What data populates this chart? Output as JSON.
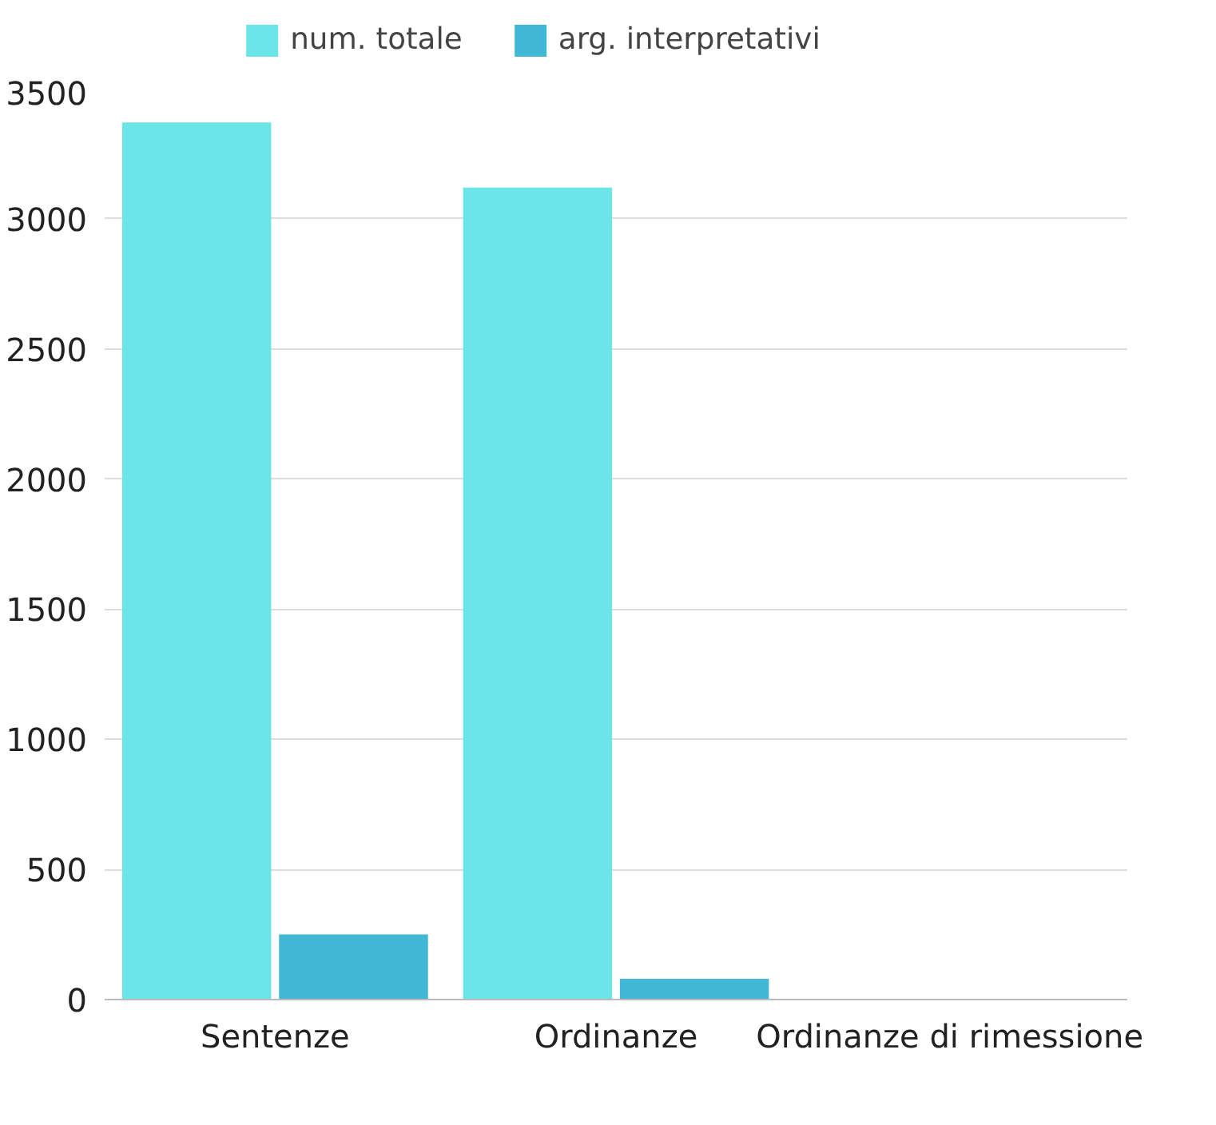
{
  "chart_data": {
    "type": "bar",
    "categories": [
      "Sentenze",
      "Ordinanze",
      "Ordinanze di rimessione"
    ],
    "series": [
      {
        "name": "num. totale",
        "color": "#6ce5e8",
        "values": [
          3370,
          3120,
          null
        ]
      },
      {
        "name": "arg. interpretativi",
        "color": "#41b8d5",
        "values": [
          250,
          80,
          null
        ]
      }
    ],
    "ylim": [
      0,
      3500
    ],
    "yticks": [
      0,
      500,
      1000,
      1500,
      2000,
      2500,
      3000,
      3500
    ],
    "grid": "y",
    "legend": "top"
  }
}
